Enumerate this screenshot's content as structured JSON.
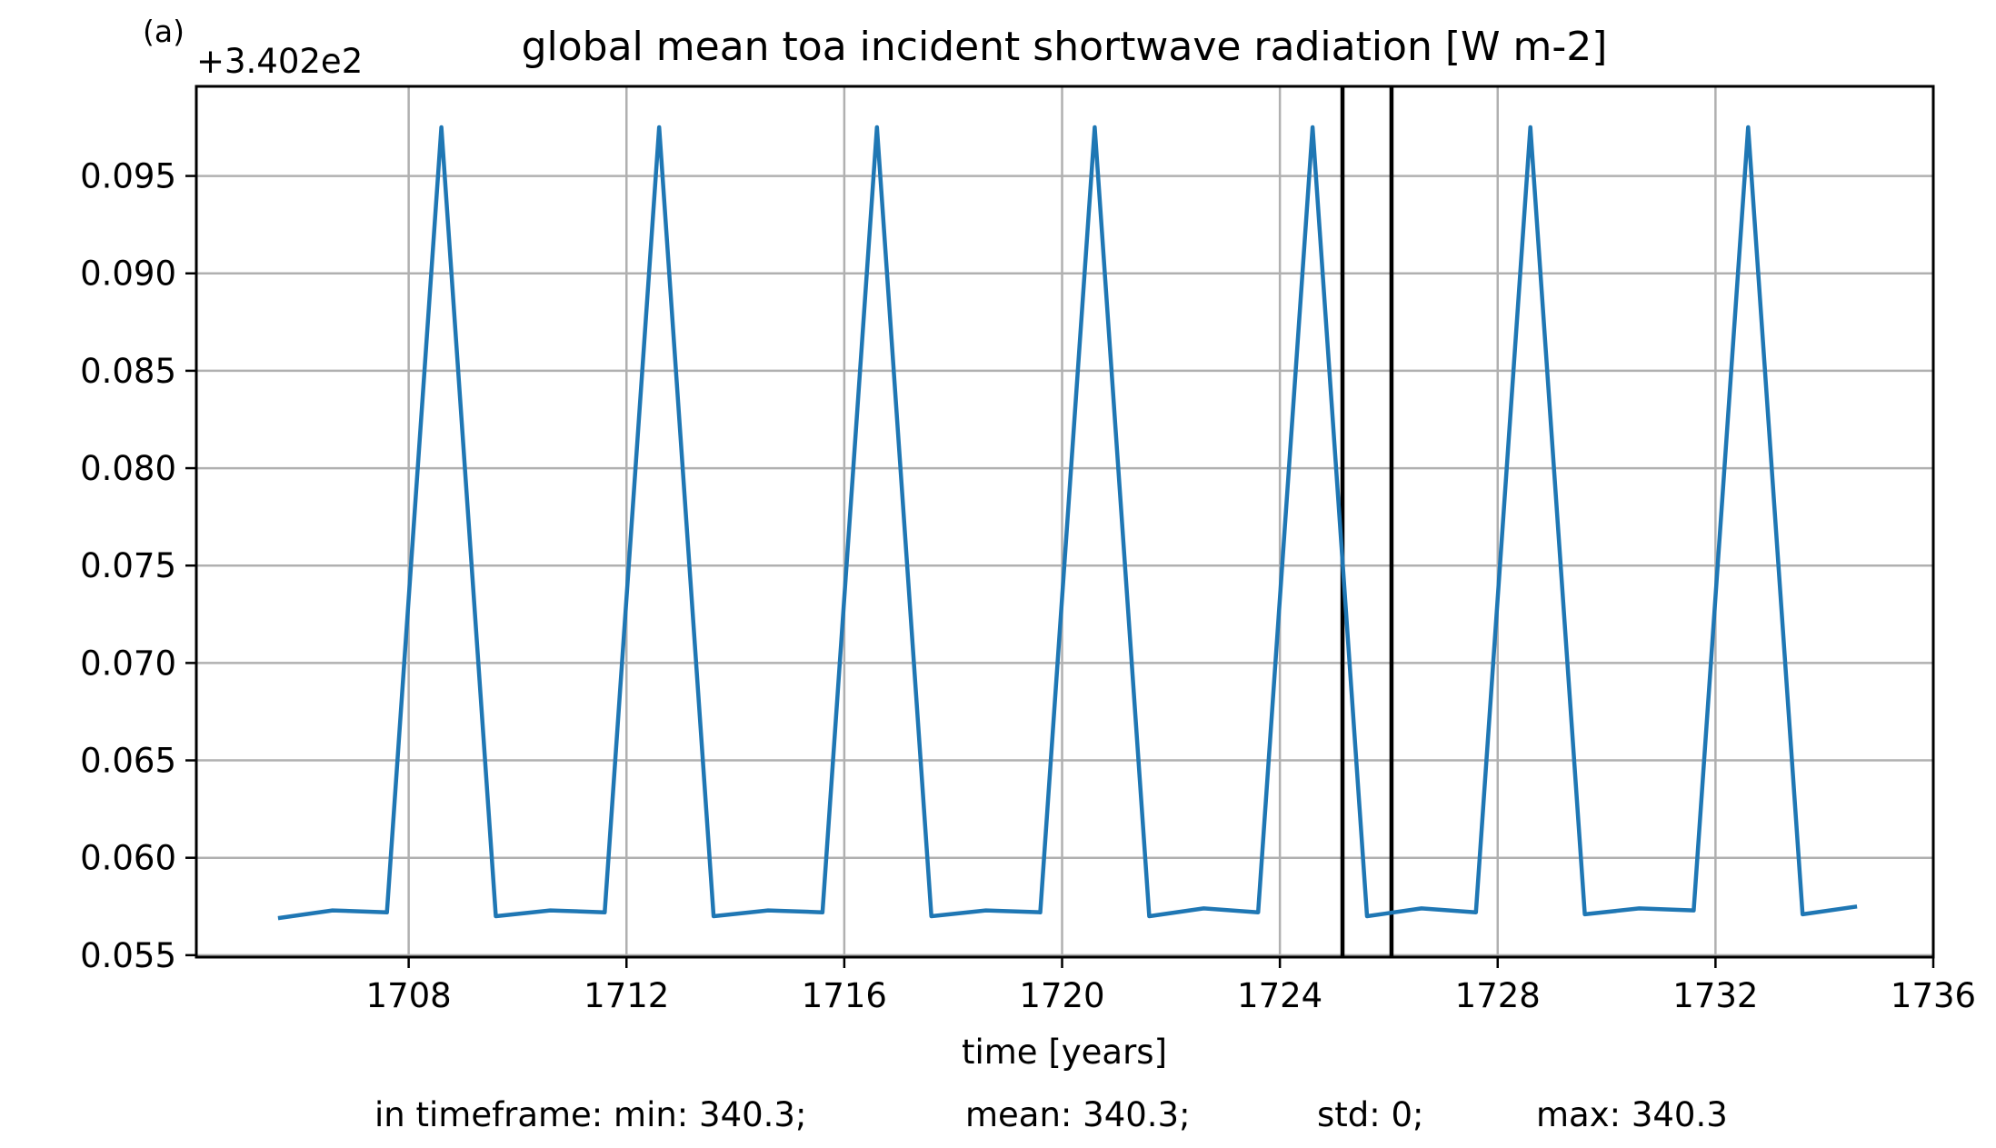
{
  "chart_data": {
    "type": "line",
    "panel_label": "(a)",
    "offset_label": "+3.402e2",
    "title": "global mean toa incident shortwave radiation [W m-2]",
    "xlabel": "time [years]",
    "ylabel": "",
    "xlim": [
      1704.1,
      1736
    ],
    "ylim": [
      0.0549,
      0.0996
    ],
    "xticks": [
      1708,
      1712,
      1716,
      1720,
      1724,
      1728,
      1732,
      1736
    ],
    "yticks": [
      0.055,
      0.06,
      0.065,
      0.07,
      0.075,
      0.08,
      0.085,
      0.09,
      0.095
    ],
    "ytick_labels": [
      "0.055",
      "0.060",
      "0.065",
      "0.070",
      "0.075",
      "0.080",
      "0.085",
      "0.090",
      "0.095"
    ],
    "grid": true,
    "vertical_lines": [
      1725.15,
      1726.05
    ],
    "series": [
      {
        "color": "#1f77b4",
        "x": [
          1705.6,
          1706.6,
          1707.6,
          1708.6,
          1709.6,
          1710.6,
          1711.6,
          1712.6,
          1713.6,
          1714.6,
          1715.6,
          1716.6,
          1717.6,
          1718.6,
          1719.6,
          1720.6,
          1721.6,
          1722.6,
          1723.6,
          1724.6,
          1725.6,
          1726.6,
          1727.6,
          1728.6,
          1729.6,
          1730.6,
          1731.6,
          1732.6,
          1733.6,
          1734.6
        ],
        "y": [
          0.0569,
          0.0573,
          0.0572,
          0.0975,
          0.057,
          0.0573,
          0.0572,
          0.0975,
          0.057,
          0.0573,
          0.0572,
          0.0975,
          0.057,
          0.0573,
          0.0572,
          0.0975,
          0.057,
          0.0574,
          0.0572,
          0.0975,
          0.057,
          0.0574,
          0.0572,
          0.0975,
          0.0571,
          0.0574,
          0.0573,
          0.0975,
          0.0571,
          0.0575
        ]
      }
    ]
  },
  "stats": {
    "min": "in timeframe: min: 340.3;",
    "mean": "mean: 340.3;",
    "std": "std: 0;",
    "max": "max: 340.3"
  }
}
